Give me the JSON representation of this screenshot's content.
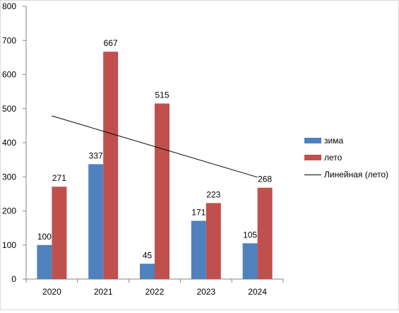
{
  "chart_data": {
    "type": "bar",
    "categories": [
      "2020",
      "2021",
      "2022",
      "2023",
      "2024"
    ],
    "series": [
      {
        "name": "зима",
        "values": [
          100,
          337,
          45,
          171,
          105
        ],
        "color": "#4f81bd"
      },
      {
        "name": "лето",
        "values": [
          271,
          667,
          515,
          223,
          268
        ],
        "color": "#c0504d"
      }
    ],
    "trendline": {
      "name": "Линейная (лето)",
      "series": "лето",
      "type": "linear",
      "color": "#000000"
    },
    "ylim": [
      0,
      800
    ],
    "yticks": [
      "0",
      "100",
      "200",
      "300",
      "400",
      "500",
      "600",
      "700",
      "800"
    ],
    "xlabel": "",
    "ylabel": "",
    "title": "",
    "legend_position": "right",
    "grid": false
  }
}
